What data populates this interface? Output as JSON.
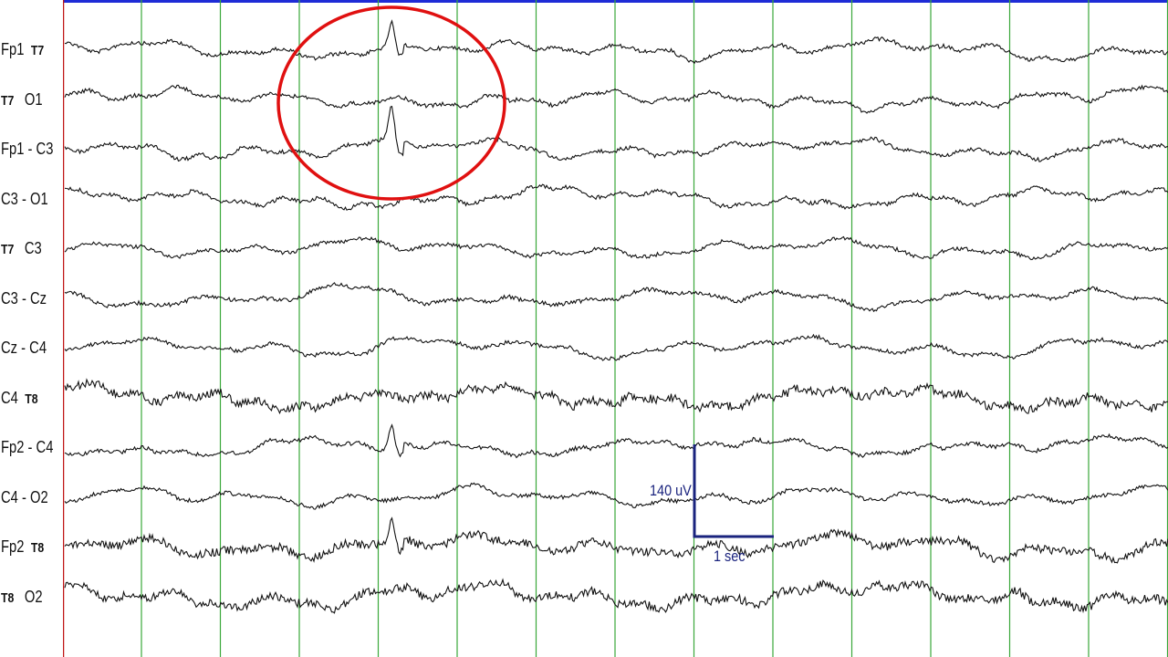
{
  "channels": [
    {
      "first": "Fp1",
      "second": "T7",
      "style": "ref"
    },
    {
      "first": "T7",
      "second": "O1",
      "style": "ref-first"
    },
    {
      "first": "Fp1 - C3",
      "second": "",
      "style": "plain"
    },
    {
      "first": "C3 - O1",
      "second": "",
      "style": "plain"
    },
    {
      "first": "T7",
      "second": "C3",
      "style": "ref-first"
    },
    {
      "first": "C3 - Cz",
      "second": "",
      "style": "plain"
    },
    {
      "first": "Cz - C4",
      "second": "",
      "style": "plain"
    },
    {
      "first": "C4",
      "second": "T8",
      "style": "ref"
    },
    {
      "first": "Fp2 - C4",
      "second": "",
      "style": "plain"
    },
    {
      "first": "C4 - O2",
      "second": "",
      "style": "plain"
    },
    {
      "first": "Fp2",
      "second": "T8",
      "style": "ref"
    },
    {
      "first": "T8",
      "second": "O2",
      "style": "ref-first"
    }
  ],
  "scale_bar": {
    "amplitude_label": "140 uV",
    "time_label": "1 sec"
  },
  "colors": {
    "trace": "#111111",
    "grid": "#3aa83a",
    "scale": "#1a237e",
    "highlight": "#e01010",
    "top_border": "#1e2bd6",
    "left_border": "#c01818",
    "label_panel": "#ffffff"
  },
  "time_grid": {
    "seconds_shown": 14
  },
  "highlight": {
    "shape": "ellipse",
    "channels_covered": [
      "Fp1 T7",
      "T7 O1",
      "Fp1 - C3"
    ]
  }
}
